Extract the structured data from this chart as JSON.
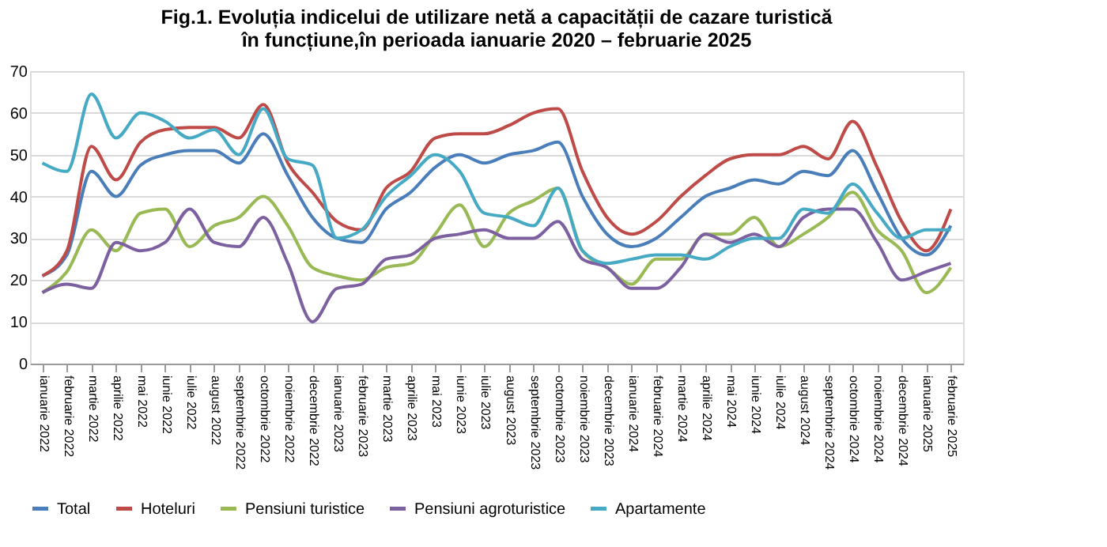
{
  "chart_data": {
    "type": "line",
    "title": "Fig.1. Evoluția indicelui de utilizare netă a capacității de cazare turistică în funcțiune,în perioada ianuarie 2020 – februarie 2025",
    "categories": [
      "ianuarie 2022",
      "februarie 2022",
      "martie 2022",
      "aprilie 2022",
      "mai 2022",
      "iunie 2022",
      "iulie 2022",
      "august 2022",
      "septembrie 2022",
      "octombrie 2022",
      "noiembrie 2022",
      "decembrie 2022",
      "ianuarie 2023",
      "februarie 2023",
      "martie 2023",
      "aprilie 2023",
      "mai 2023",
      "iunie 2023",
      "iulie 2023",
      "august 2023",
      "septembrie 2023",
      "octombrie 2023",
      "noiembrie 2023",
      "decembrie 2023",
      "ianuarie 2024",
      "februarie 2024",
      "martie 2024",
      "aprilie 2024",
      "mai 2024",
      "iunie 2024",
      "iulie 2024",
      "august 2024",
      "septembrie 2024",
      "octombrie 2024",
      "noiembrie 2024",
      "decembrie 2024",
      "ianuarie 2025",
      "februarie 2025"
    ],
    "series": [
      {
        "name": "Total",
        "color": "#4a7ebb",
        "values": [
          21,
          26,
          46,
          40,
          47.5,
          50,
          51,
          51,
          48,
          55,
          45,
          35,
          30,
          29,
          37,
          41,
          47,
          50,
          48,
          50,
          51,
          53,
          40,
          31,
          28,
          30,
          35,
          40,
          42,
          44,
          43,
          46,
          45,
          51,
          41,
          30,
          26,
          33
        ]
      },
      {
        "name": "Hoteluri",
        "color": "#be4b48",
        "values": [
          21,
          27,
          52,
          44,
          53,
          56,
          56.5,
          56.5,
          54,
          62,
          48,
          41,
          34,
          32,
          42,
          46,
          54,
          55,
          55,
          57,
          60,
          61,
          46,
          35,
          31,
          34,
          40,
          45,
          49,
          50,
          50,
          52,
          49,
          58,
          47,
          34,
          27,
          37
        ]
      },
      {
        "name": "Pensiuni turistice",
        "color": "#98b954",
        "values": [
          17,
          22,
          32,
          27,
          36,
          37,
          28,
          33,
          35,
          40,
          33,
          23,
          21,
          20,
          23,
          24,
          31,
          38,
          28,
          36,
          39,
          42,
          27,
          23,
          19,
          25,
          25,
          31,
          31,
          35,
          28,
          31,
          35,
          41,
          32,
          27,
          17,
          23
        ]
      },
      {
        "name": "Pensiuni agroturistice",
        "color": "#7d60a0",
        "values": [
          17,
          19,
          18,
          29,
          27,
          29,
          37,
          29,
          28,
          35,
          24,
          10,
          18,
          19,
          25,
          26,
          30,
          31,
          32,
          30,
          30,
          34,
          25,
          23,
          18,
          18,
          23,
          31,
          29,
          31,
          28,
          35,
          37,
          37,
          29,
          20,
          22,
          24
        ]
      },
      {
        "name": "Apartamente",
        "color": "#46aac5",
        "values": [
          48,
          46,
          64.5,
          54,
          60,
          58,
          54,
          56,
          50,
          61,
          49,
          47.5,
          30,
          32,
          40,
          45,
          50,
          46,
          36,
          35,
          33,
          42,
          27,
          24,
          25,
          26,
          26,
          25,
          28,
          30,
          30,
          37,
          36,
          43,
          36,
          30,
          32,
          32
        ]
      }
    ],
    "ylim": [
      0,
      70
    ],
    "yticks": [
      0,
      10,
      20,
      30,
      40,
      50,
      60,
      70
    ],
    "grid": "y",
    "legend": "bottom",
    "marker": "none",
    "line_style": "solid"
  }
}
